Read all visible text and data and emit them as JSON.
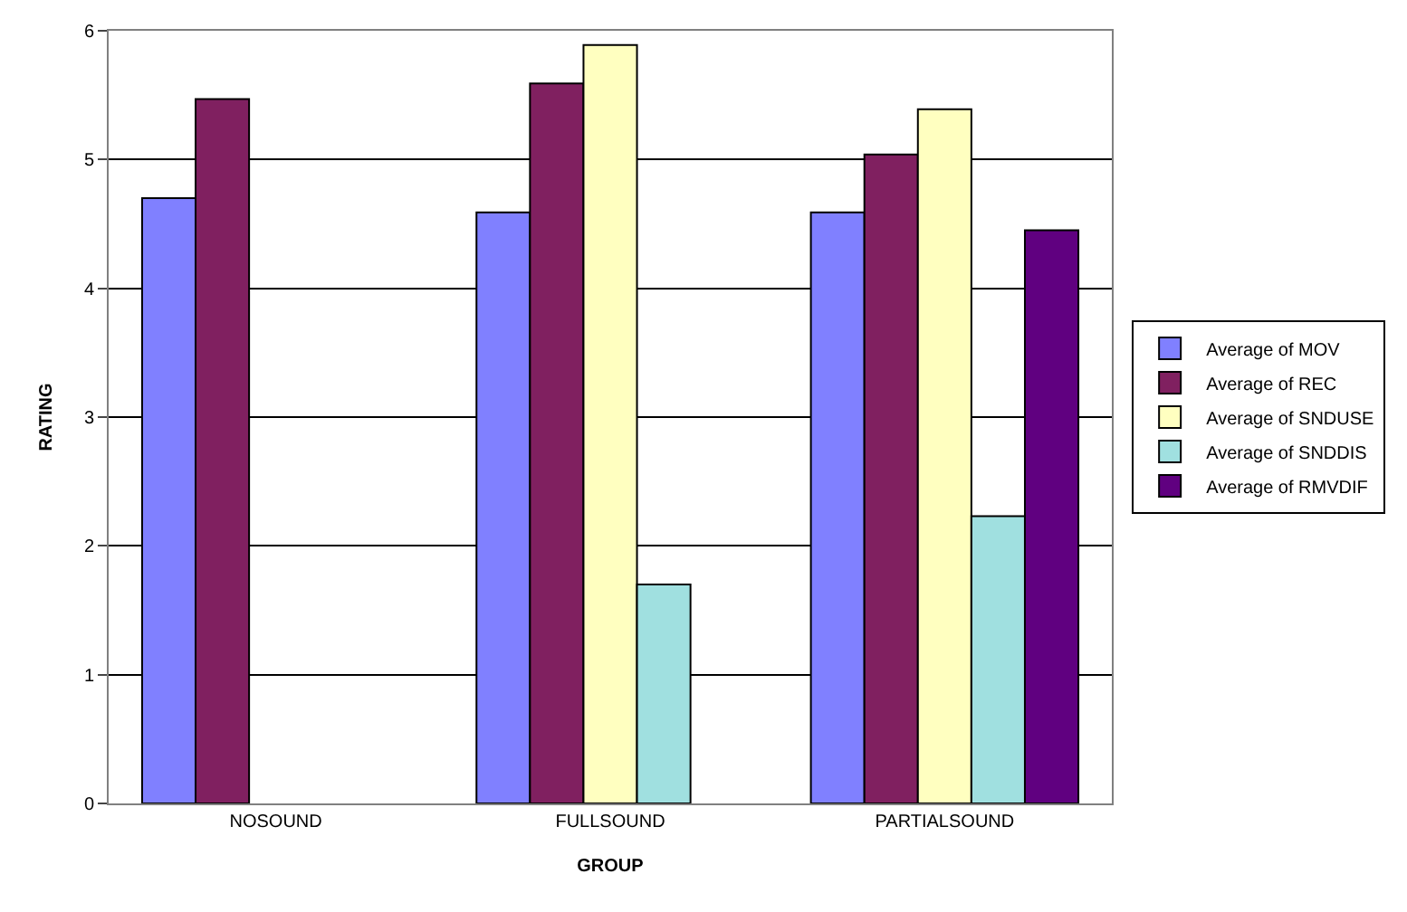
{
  "chart_data": {
    "type": "bar",
    "xlabel": "GROUP",
    "ylabel": "RATING",
    "categories": [
      "NOSOUND",
      "FULLSOUND",
      "PARTIALSOUND"
    ],
    "series": [
      {
        "name": "Average of MOV",
        "color": "#8080ff",
        "values": [
          4.7,
          4.59,
          4.59
        ]
      },
      {
        "name": "Average of REC",
        "color": "#802060",
        "values": [
          5.47,
          5.59,
          5.04
        ]
      },
      {
        "name": "Average of SNDUSE",
        "color": "#ffffc0",
        "values": [
          null,
          5.89,
          5.39
        ]
      },
      {
        "name": "Average of SNDDIS",
        "color": "#a0e0e0",
        "values": [
          null,
          1.7,
          2.23
        ]
      },
      {
        "name": "Average of RMVDIF",
        "color": "#600080",
        "values": [
          null,
          null,
          4.45
        ]
      }
    ],
    "ylim": [
      0,
      6
    ],
    "yticks": [
      0,
      1,
      2,
      3,
      4,
      5,
      6
    ],
    "grid": "y",
    "legend": "right"
  }
}
